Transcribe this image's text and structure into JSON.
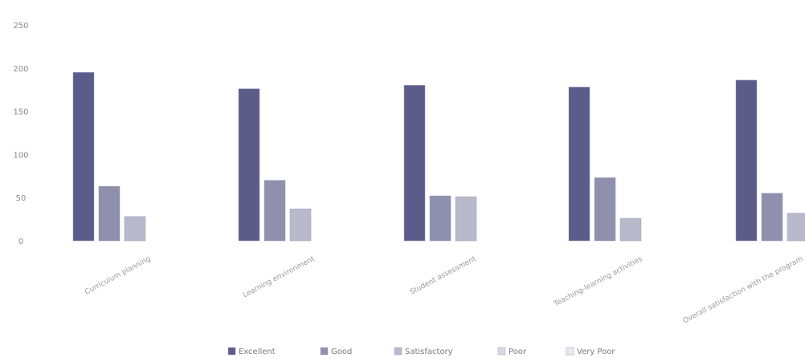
{
  "chart_data": {
    "type": "bar",
    "title": "",
    "xlabel": "",
    "ylabel": "",
    "ylim": [
      0,
      250
    ],
    "y_ticks": [
      0,
      50,
      100,
      150,
      200,
      250
    ],
    "grid": false,
    "legend_position": "bottom",
    "categories": [
      "Curriculum planning",
      "Learning environment",
      "Student assessment",
      "Teaching-learning activities",
      "Overall satisfaction with the program"
    ],
    "series": [
      {
        "name": "Excellent",
        "color": "#5c5c8a",
        "values": [
          195,
          176,
          180,
          178,
          186
        ]
      },
      {
        "name": "Good",
        "color": "#8f8fae",
        "values": [
          63,
          70,
          52,
          73,
          55
        ]
      },
      {
        "name": "Satisfactory",
        "color": "#b9b9cc",
        "values": [
          28,
          37,
          51,
          26,
          32
        ]
      },
      {
        "name": "Poor",
        "color": "#d8d8e2",
        "values": [
          0,
          0,
          0,
          0,
          0
        ]
      },
      {
        "name": "Very Poor",
        "color": "#e8e8ee",
        "values": [
          0,
          0,
          0,
          0,
          0
        ]
      }
    ]
  }
}
